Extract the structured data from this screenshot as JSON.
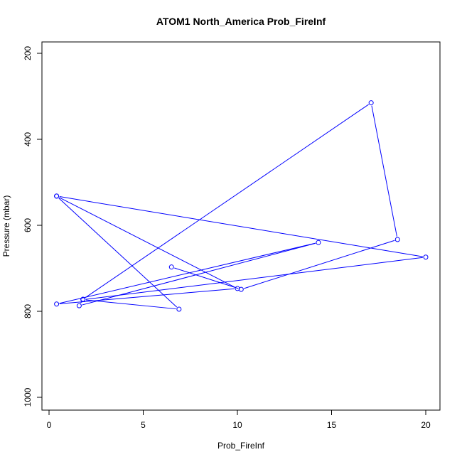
{
  "chart_data": {
    "type": "line",
    "title": "ATOM1 North_America Prob_FireInf",
    "xlabel": "Prob_FireInf",
    "ylabel": "Pressure (mbar)",
    "xlim": [
      0,
      20
    ],
    "ylim": [
      1000,
      200
    ],
    "y_axis_inverted": true,
    "x_ticks": [
      0,
      5,
      10,
      15,
      20
    ],
    "x_tick_labels": [
      "0",
      "5",
      "10",
      "15",
      "20"
    ],
    "y_ticks": [
      200,
      400,
      600,
      800,
      1000
    ],
    "y_tick_labels": [
      "200",
      "400",
      "600",
      "800",
      "1000"
    ],
    "grid": false,
    "legend": "none",
    "marker": "open-circle",
    "line_color": "#0000ff",
    "series": [
      {
        "x": [
          6.5,
          10.2,
          18.5,
          17.1,
          1.8,
          1.6,
          14.3,
          0.4,
          10.0,
          0.4,
          20.0,
          1.8,
          6.9,
          0.4
        ],
        "y": [
          697,
          749,
          633,
          315,
          772,
          787,
          640,
          783,
          747,
          532,
          674,
          773,
          795,
          532
        ]
      }
    ]
  }
}
